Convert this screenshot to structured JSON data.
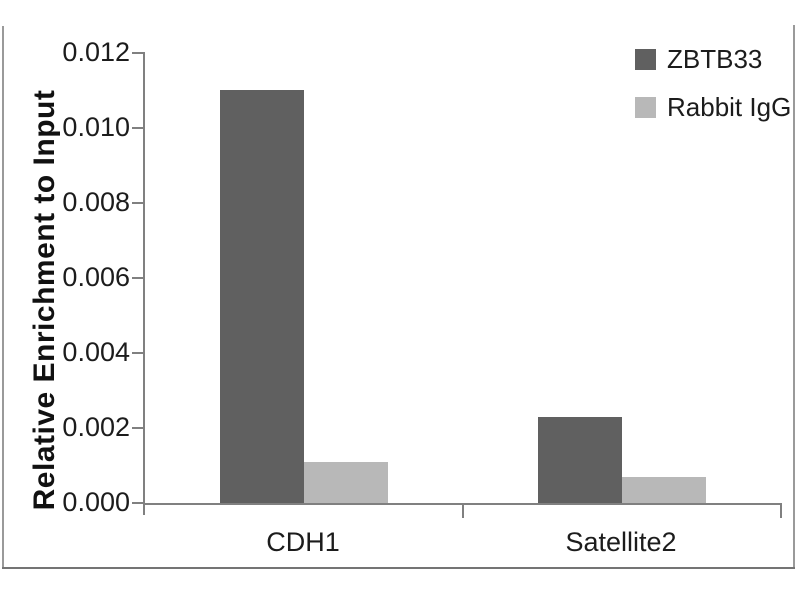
{
  "chart_data": {
    "type": "bar",
    "categories": [
      "CDH1",
      "Satellite2"
    ],
    "series": [
      {
        "name": "ZBTB33",
        "color": "#606060",
        "values": [
          0.011,
          0.0023
        ]
      },
      {
        "name": "Rabbit IgG",
        "color": "#b8b8b8",
        "values": [
          0.0011,
          0.0007
        ]
      }
    ],
    "xlabel": "",
    "ylabel": "Relative Enrichment to Input",
    "ylim": [
      0,
      0.012
    ],
    "ytick_step": 0.002,
    "yticks": [
      "0.000",
      "0.002",
      "0.004",
      "0.006",
      "0.008",
      "0.010",
      "0.012"
    ],
    "grid": false,
    "legend_position": "top-right",
    "colors": {
      "axis": "#808080",
      "text": "#1c1c1c",
      "frame": "#9a9a9a"
    }
  }
}
